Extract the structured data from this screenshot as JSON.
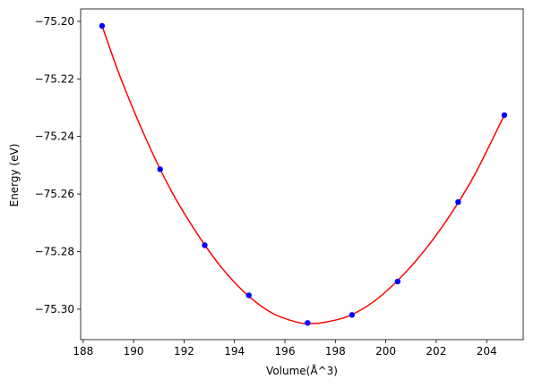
{
  "chart_data": {
    "type": "scatter",
    "xlabel": "Volume(Å^3)",
    "ylabel": "Energy (eV)",
    "xlim": [
      187.9,
      205.45
    ],
    "ylim": [
      -75.3106,
      -75.1957
    ],
    "xticks": [
      188,
      190,
      192,
      194,
      196,
      198,
      200,
      202,
      204
    ],
    "xtick_labels": [
      "188",
      "190",
      "192",
      "194",
      "196",
      "198",
      "200",
      "202",
      "204"
    ],
    "yticks": [
      -75.2,
      -75.22,
      -75.24,
      -75.26,
      -75.28,
      -75.3
    ],
    "ytick_labels": [
      "−75.20",
      "−75.22",
      "−75.24",
      "−75.26",
      "−75.28",
      "−75.30"
    ],
    "series": [
      {
        "kind": "points",
        "color": "#0000ff",
        "x": [
          188.75,
          191.05,
          192.82,
          194.57,
          196.9,
          198.66,
          200.47,
          202.87,
          204.7
        ],
        "y": [
          -75.2016,
          -75.2514,
          -75.2778,
          -75.2952,
          -75.3048,
          -75.302,
          -75.2904,
          -75.2628,
          -75.2326
        ]
      },
      {
        "kind": "fit-line",
        "color": "#ff0000",
        "x": [
          188.75,
          189.5,
          190.5,
          191.5,
          192.5,
          193.5,
          194.5,
          195.5,
          196.5,
          197.0,
          197.5,
          198.5,
          199.5,
          200.5,
          201.5,
          202.5,
          203.5,
          204.7
        ],
        "y": [
          -75.2016,
          -75.22,
          -75.241,
          -75.259,
          -75.2735,
          -75.2857,
          -75.295,
          -75.3014,
          -75.3046,
          -75.305,
          -75.3047,
          -75.3025,
          -75.2975,
          -75.2898,
          -75.28,
          -75.268,
          -75.2537,
          -75.2326
        ]
      }
    ],
    "grid": false,
    "legend": false
  }
}
